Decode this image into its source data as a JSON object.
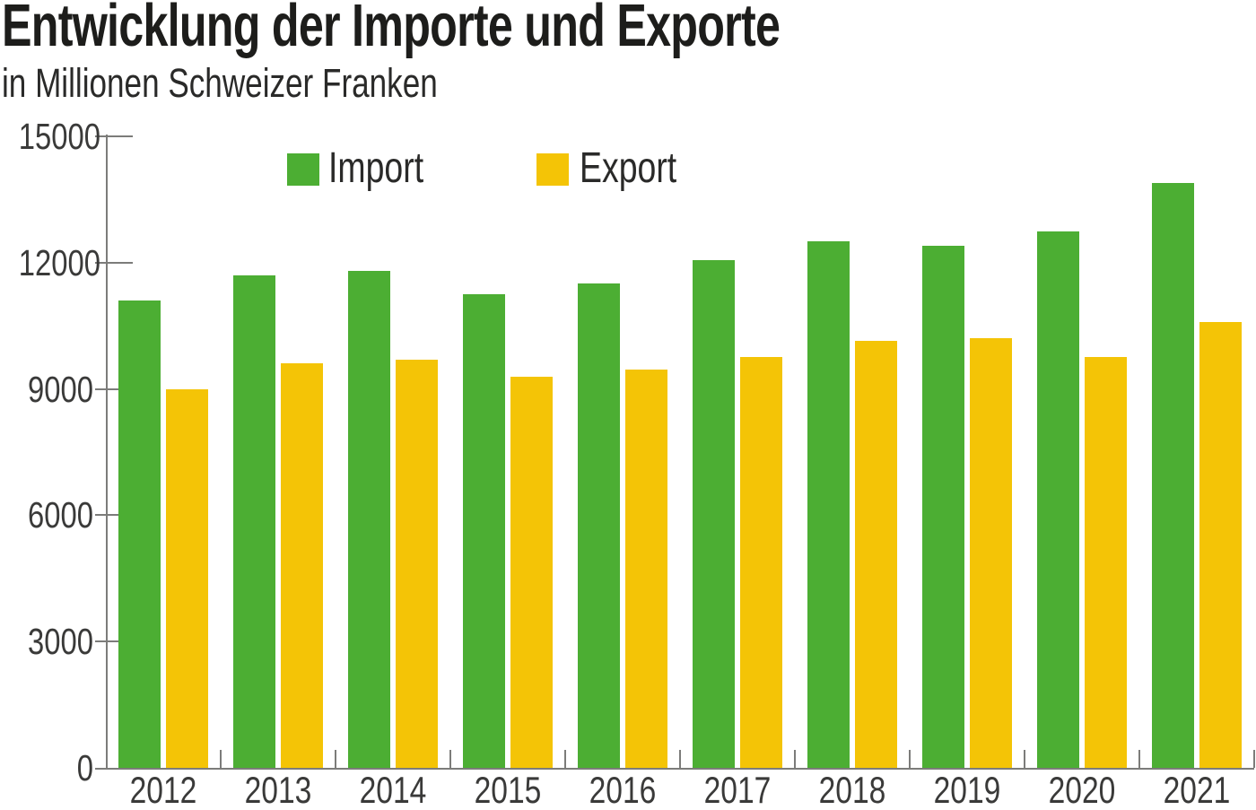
{
  "title": "Entwicklung der Importe und Exporte",
  "subtitle": "in Millionen Schweizer Franken",
  "legend": {
    "import": "Import",
    "export": "Export"
  },
  "colors": {
    "import": "#4cae33",
    "export": "#f4c406",
    "axis": "#7c7c7a",
    "text": "#3a3a39"
  },
  "chart_data": {
    "type": "bar",
    "title": "Entwicklung der Importe und Exporte",
    "subtitle": "in Millionen Schweizer Franken",
    "xlabel": "",
    "ylabel": "in Millionen Schweizer Franken",
    "ylim": [
      0,
      15000
    ],
    "grid": false,
    "legend_position": "top-inside",
    "categories": [
      "2012",
      "2013",
      "2014",
      "2015",
      "2016",
      "2017",
      "2018",
      "2019",
      "2020",
      "2021"
    ],
    "series": [
      {
        "name": "Import",
        "color": "#4cae33",
        "values": [
          11100,
          11700,
          11800,
          11250,
          11500,
          12050,
          12500,
          12400,
          12750,
          13900
        ]
      },
      {
        "name": "Export",
        "color": "#f4c406",
        "values": [
          9000,
          9600,
          9700,
          9300,
          9450,
          9750,
          10150,
          10200,
          9750,
          10600
        ]
      }
    ],
    "y_ticks": [
      {
        "value": 0,
        "label": "0"
      },
      {
        "value": 3000,
        "label": "3000"
      },
      {
        "value": 6000,
        "label": "6000"
      },
      {
        "value": 9000,
        "label": "9000"
      },
      {
        "value": 12000,
        "label": "12000"
      },
      {
        "value": 15000,
        "label": "15000"
      }
    ]
  }
}
